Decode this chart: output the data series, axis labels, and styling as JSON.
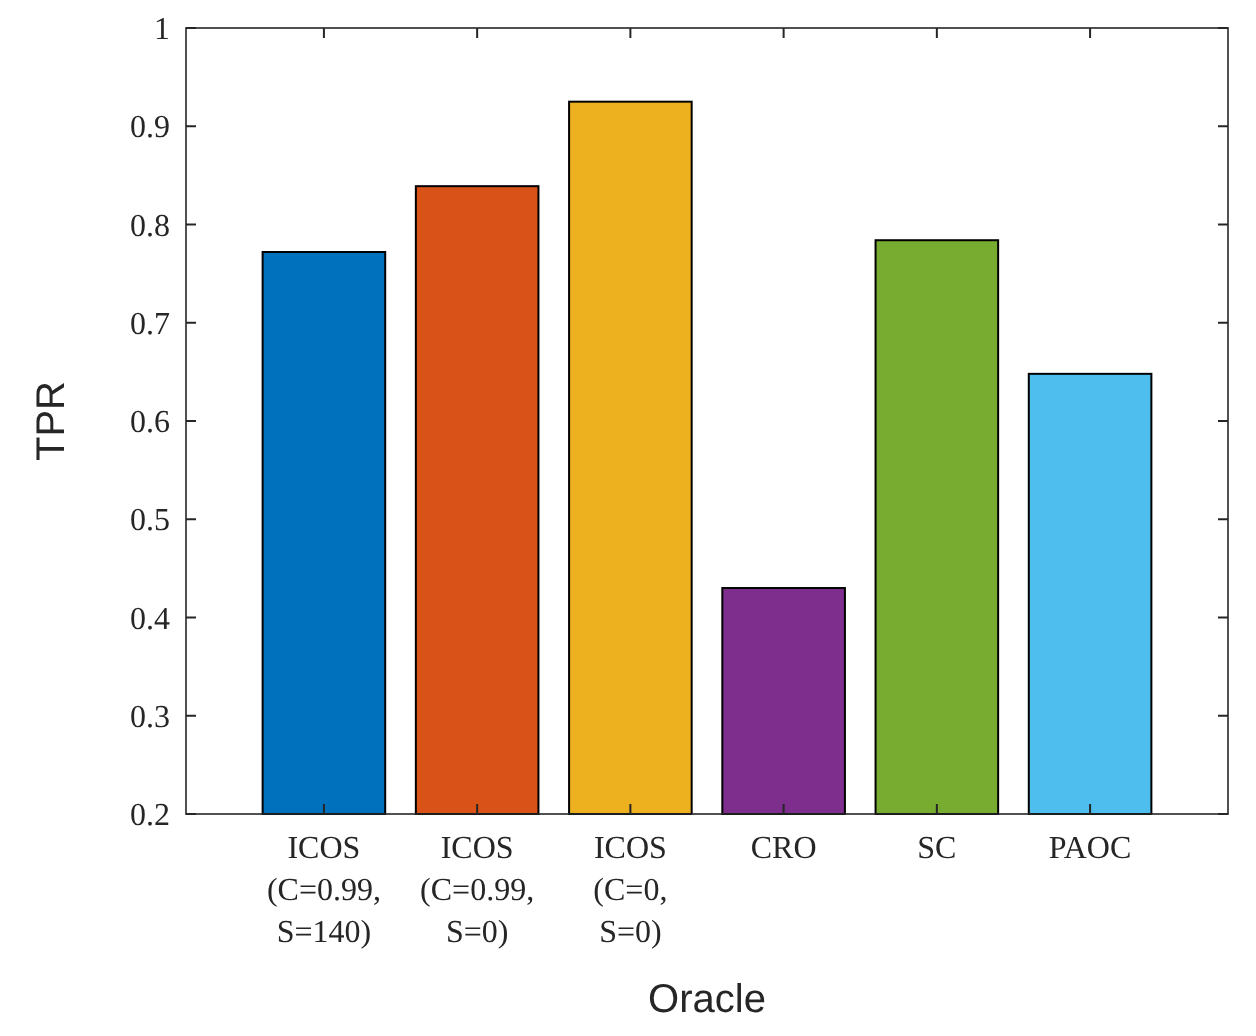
{
  "chart_data": {
    "type": "bar",
    "xlabel": "Oracle",
    "ylabel": "TPR",
    "categories": [
      "ICOS\n(C=0.99,\nS=140)",
      "ICOS\n(C=0.99,\nS=0)",
      "ICOS\n(C=0,\nS=0)",
      "CRO",
      "SC",
      "PAOC"
    ],
    "values": [
      0.772,
      0.839,
      0.925,
      0.43,
      0.784,
      0.648
    ],
    "colors": [
      "#0072bd",
      "#d95319",
      "#edb120",
      "#7e2f8e",
      "#77ac30",
      "#4dbeee"
    ],
    "ylim": [
      0.2,
      1
    ],
    "yticks": [
      0.2,
      0.3,
      0.4,
      0.5,
      0.6,
      0.7,
      0.8,
      0.9,
      1
    ],
    "grid": false
  }
}
